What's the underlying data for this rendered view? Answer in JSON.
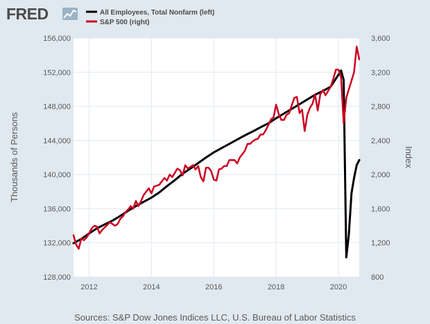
{
  "logo": {
    "text": "FRED",
    "icon": "fred-graph-icon"
  },
  "source_text": "Sources: S&P Dow Jones Indices LLC, U.S. Bureau of Labor Statistics",
  "colors": {
    "background": "#e1e9f0",
    "plot_bg": "#ffffff",
    "employees": "#000000",
    "sp500": "#cc0022",
    "grid": "#e1e9f0"
  },
  "chart_data": {
    "type": "line",
    "title": "",
    "legend_position": "top-left",
    "grid": true,
    "x_ticks": [
      "2012",
      "2014",
      "2016",
      "2018",
      "2020"
    ],
    "xlim": [
      "2011-07",
      "2020-09"
    ],
    "y_left": {
      "label": "Thousands of Persons",
      "ylim": [
        128000,
        156000
      ],
      "ticks": [
        "128,000",
        "132,000",
        "136,000",
        "140,000",
        "144,000",
        "148,000",
        "152,000",
        "156,000"
      ]
    },
    "y_right": {
      "label": "Index",
      "ylim": [
        800,
        3600
      ],
      "ticks": [
        "800",
        "1,200",
        "1,600",
        "2,000",
        "2,400",
        "2,800",
        "3,200",
        "3,600"
      ]
    },
    "series": [
      {
        "name": "All Employees, Total Nonfarm (left)",
        "axis": "left",
        "color": "#000000",
        "points": [
          [
            "2011-07",
            131950
          ],
          [
            "2011-10",
            132450
          ],
          [
            "2012-01",
            133100
          ],
          [
            "2012-04",
            133700
          ],
          [
            "2012-07",
            134150
          ],
          [
            "2012-10",
            134600
          ],
          [
            "2013-01",
            135150
          ],
          [
            "2013-04",
            135750
          ],
          [
            "2013-07",
            136300
          ],
          [
            "2013-10",
            136800
          ],
          [
            "2014-01",
            137300
          ],
          [
            "2014-04",
            137900
          ],
          [
            "2014-07",
            138650
          ],
          [
            "2014-10",
            139350
          ],
          [
            "2015-01",
            140100
          ],
          [
            "2015-04",
            140700
          ],
          [
            "2015-07",
            141350
          ],
          [
            "2015-10",
            142000
          ],
          [
            "2016-01",
            142600
          ],
          [
            "2016-04",
            143100
          ],
          [
            "2016-07",
            143600
          ],
          [
            "2016-10",
            144100
          ],
          [
            "2017-01",
            144600
          ],
          [
            "2017-04",
            145050
          ],
          [
            "2017-07",
            145550
          ],
          [
            "2017-10",
            146000
          ],
          [
            "2018-01",
            146600
          ],
          [
            "2018-04",
            147150
          ],
          [
            "2018-07",
            147700
          ],
          [
            "2018-10",
            148250
          ],
          [
            "2019-01",
            148800
          ],
          [
            "2019-04",
            149350
          ],
          [
            "2019-07",
            149800
          ],
          [
            "2019-10",
            150300
          ],
          [
            "2020-01",
            151700
          ],
          [
            "2020-02",
            152200
          ],
          [
            "2020-03",
            151100
          ],
          [
            "2020-04",
            130300
          ],
          [
            "2020-05",
            133000
          ],
          [
            "2020-06",
            137800
          ],
          [
            "2020-07",
            139600
          ],
          [
            "2020-08",
            141100
          ],
          [
            "2020-09",
            141700
          ]
        ]
      },
      {
        "name": "S&P 500 (right)",
        "axis": "right",
        "color": "#cc0022",
        "points": [
          [
            "2011-07",
            1290
          ],
          [
            "2011-08",
            1180
          ],
          [
            "2011-09",
            1130
          ],
          [
            "2011-10",
            1250
          ],
          [
            "2011-11",
            1230
          ],
          [
            "2011-12",
            1260
          ],
          [
            "2012-01",
            1310
          ],
          [
            "2012-02",
            1370
          ],
          [
            "2012-03",
            1400
          ],
          [
            "2012-04",
            1390
          ],
          [
            "2012-05",
            1310
          ],
          [
            "2012-06",
            1350
          ],
          [
            "2012-07",
            1380
          ],
          [
            "2012-08",
            1410
          ],
          [
            "2012-09",
            1440
          ],
          [
            "2012-10",
            1420
          ],
          [
            "2012-11",
            1400
          ],
          [
            "2012-12",
            1420
          ],
          [
            "2013-01",
            1480
          ],
          [
            "2013-02",
            1510
          ],
          [
            "2013-03",
            1560
          ],
          [
            "2013-04",
            1590
          ],
          [
            "2013-05",
            1630
          ],
          [
            "2013-06",
            1600
          ],
          [
            "2013-07",
            1690
          ],
          [
            "2013-08",
            1630
          ],
          [
            "2013-09",
            1690
          ],
          [
            "2013-10",
            1760
          ],
          [
            "2013-11",
            1800
          ],
          [
            "2013-12",
            1840
          ],
          [
            "2014-01",
            1780
          ],
          [
            "2014-02",
            1860
          ],
          [
            "2014-03",
            1870
          ],
          [
            "2014-04",
            1880
          ],
          [
            "2014-05",
            1920
          ],
          [
            "2014-06",
            1960
          ],
          [
            "2014-07",
            1930
          ],
          [
            "2014-08",
            2000
          ],
          [
            "2014-09",
            1970
          ],
          [
            "2014-10",
            2020
          ],
          [
            "2014-11",
            2070
          ],
          [
            "2014-12",
            2050
          ],
          [
            "2015-01",
            1990
          ],
          [
            "2015-02",
            2110
          ],
          [
            "2015-03",
            2070
          ],
          [
            "2015-04",
            2090
          ],
          [
            "2015-05",
            2110
          ],
          [
            "2015-06",
            2060
          ],
          [
            "2015-07",
            2100
          ],
          [
            "2015-08",
            1970
          ],
          [
            "2015-09",
            1920
          ],
          [
            "2015-10",
            2080
          ],
          [
            "2015-11",
            2080
          ],
          [
            "2015-12",
            2040
          ],
          [
            "2016-01",
            1940
          ],
          [
            "2016-02",
            1930
          ],
          [
            "2016-03",
            2060
          ],
          [
            "2016-04",
            2070
          ],
          [
            "2016-05",
            2100
          ],
          [
            "2016-06",
            2100
          ],
          [
            "2016-07",
            2170
          ],
          [
            "2016-08",
            2170
          ],
          [
            "2016-09",
            2170
          ],
          [
            "2016-10",
            2130
          ],
          [
            "2016-11",
            2200
          ],
          [
            "2016-12",
            2240
          ],
          [
            "2017-01",
            2280
          ],
          [
            "2017-02",
            2360
          ],
          [
            "2017-03",
            2360
          ],
          [
            "2017-04",
            2390
          ],
          [
            "2017-05",
            2410
          ],
          [
            "2017-06",
            2420
          ],
          [
            "2017-07",
            2470
          ],
          [
            "2017-08",
            2470
          ],
          [
            "2017-09",
            2520
          ],
          [
            "2017-10",
            2580
          ],
          [
            "2017-11",
            2650
          ],
          [
            "2017-12",
            2670
          ],
          [
            "2018-01",
            2820
          ],
          [
            "2018-02",
            2710
          ],
          [
            "2018-03",
            2640
          ],
          [
            "2018-04",
            2640
          ],
          [
            "2018-05",
            2700
          ],
          [
            "2018-06",
            2720
          ],
          [
            "2018-07",
            2810
          ],
          [
            "2018-08",
            2900
          ],
          [
            "2018-09",
            2910
          ],
          [
            "2018-10",
            2720
          ],
          [
            "2018-11",
            2760
          ],
          [
            "2018-12",
            2510
          ],
          [
            "2019-01",
            2700
          ],
          [
            "2019-02",
            2780
          ],
          [
            "2019-03",
            2830
          ],
          [
            "2019-04",
            2940
          ],
          [
            "2019-05",
            2750
          ],
          [
            "2019-06",
            2940
          ],
          [
            "2019-07",
            2990
          ],
          [
            "2019-08",
            2930
          ],
          [
            "2019-09",
            2980
          ],
          [
            "2019-10",
            3030
          ],
          [
            "2019-11",
            3120
          ],
          [
            "2019-12",
            3230
          ],
          [
            "2020-01",
            3230
          ],
          [
            "2020-02",
            3140
          ],
          [
            "2020-03",
            2600
          ],
          [
            "2020-04",
            2900
          ],
          [
            "2020-05",
            3000
          ],
          [
            "2020-06",
            3100
          ],
          [
            "2020-07",
            3200
          ],
          [
            "2020-08",
            3500
          ],
          [
            "2020-09",
            3350
          ]
        ]
      }
    ]
  }
}
